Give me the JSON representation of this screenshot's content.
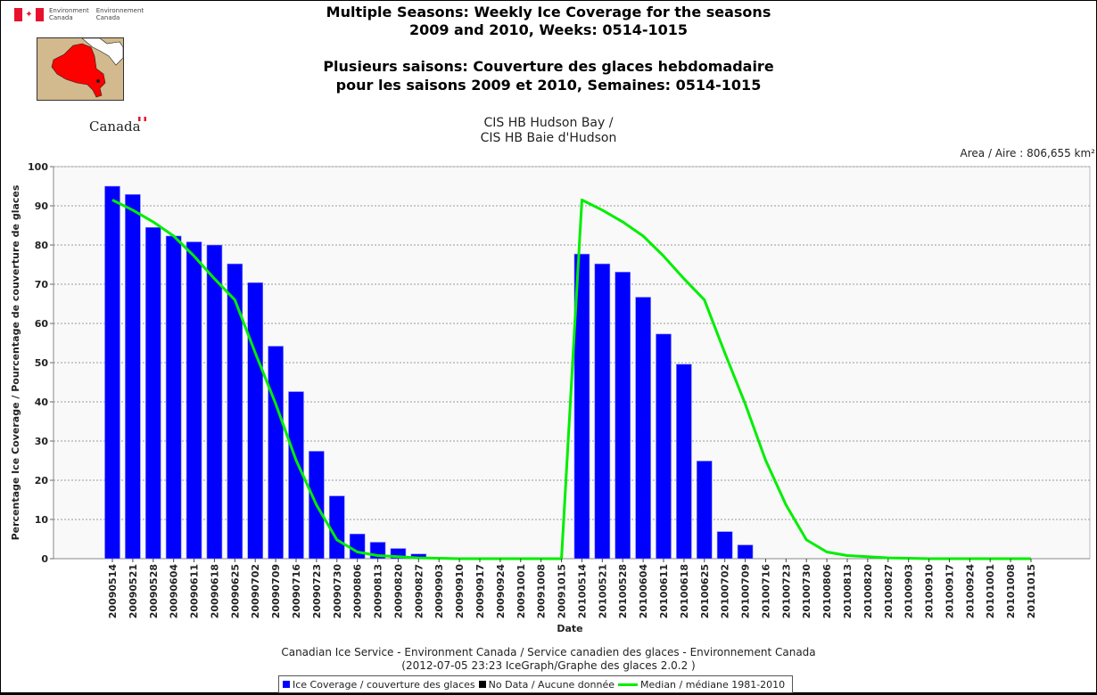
{
  "header": {
    "ec_en": "Environment",
    "ec_en2": "Canada",
    "ec_fr": "Environnement",
    "ec_fr2": "Canada",
    "wordmark": "Canada",
    "title_lines": [
      "Multiple Seasons: Weekly Ice Coverage for the seasons",
      "2009 and 2010, Weeks: 0514-1015",
      "Plusieurs saisons: Couverture des glaces hebdomadaire",
      "pour les saisons 2009 et 2010, Semaines: 0514-1015"
    ],
    "region_lines": [
      "CIS HB Hudson Bay /",
      "CIS HB Baie d'Hudson"
    ],
    "area": "Area / Aire : 806,655 km²"
  },
  "footer": {
    "line1": "Canadian Ice Service - Environment Canada / Service canadien des glaces - Environnement Canada",
    "line2": "(2012-07-05 23:23 IceGraph/Graphe des glaces 2.0.2 )"
  },
  "legend": {
    "ice": "Ice Coverage / couverture des glaces",
    "nodata": "No Data / Aucune donnée",
    "median": "Median / médiane 1981-2010"
  },
  "colors": {
    "bar": "#0000ff",
    "median": "#00ee00",
    "nodata": "#000000",
    "plot_bg": "#f9f9f9",
    "grid": "#999999"
  },
  "chart_data": {
    "type": "bar",
    "title": "Multiple Seasons: Weekly Ice Coverage for the seasons 2009 and 2010, Weeks: 0514-1015",
    "xlabel": "Date",
    "ylabel": "Percentage Ice Coverage / Pourcentage de couverture de glaces",
    "ylim": [
      0,
      100
    ],
    "yticks": [
      0,
      10,
      20,
      30,
      40,
      50,
      60,
      70,
      80,
      90,
      100
    ],
    "grid": true,
    "legend_position": "bottom",
    "categories": [
      "20090514",
      "20090521",
      "20090528",
      "20090604",
      "20090611",
      "20090618",
      "20090625",
      "20090702",
      "20090709",
      "20090716",
      "20090723",
      "20090730",
      "20090806",
      "20090813",
      "20090820",
      "20090827",
      "20090903",
      "20090910",
      "20090917",
      "20090924",
      "20091001",
      "20091008",
      "20091015",
      "20100514",
      "20100521",
      "20100528",
      "20100604",
      "20100611",
      "20100618",
      "20100625",
      "20100702",
      "20100709",
      "20100716",
      "20100723",
      "20100730",
      "20100806",
      "20100813",
      "20100820",
      "20100827",
      "20100903",
      "20100910",
      "20100917",
      "20100924",
      "20101001",
      "20101008",
      "20101015"
    ],
    "series": [
      {
        "name": "Ice Coverage / couverture des glaces",
        "kind": "bar",
        "values": [
          95.0,
          92.9,
          84.5,
          82.3,
          80.8,
          80.0,
          75.2,
          70.4,
          54.2,
          42.6,
          27.4,
          16.0,
          6.3,
          4.2,
          2.6,
          1.2,
          0,
          0,
          0,
          0,
          0,
          0,
          0,
          77.7,
          75.2,
          73.1,
          66.7,
          57.3,
          49.6,
          24.9,
          6.9,
          3.5,
          0,
          0,
          0,
          0,
          0,
          0,
          0,
          0,
          0,
          0,
          0,
          0,
          0,
          0
        ]
      },
      {
        "name": "Median / médiane 1981-2010",
        "kind": "line",
        "values": [
          91.5,
          88.9,
          85.9,
          82.3,
          77.2,
          71.4,
          66.0,
          52.5,
          39.5,
          25.1,
          13.7,
          4.8,
          1.7,
          0.8,
          0.5,
          0.2,
          0.1,
          0,
          0,
          0,
          0,
          0,
          0,
          91.5,
          88.9,
          85.9,
          82.3,
          77.2,
          71.4,
          66.0,
          52.5,
          39.5,
          25.1,
          13.7,
          4.8,
          1.7,
          0.8,
          0.5,
          0.2,
          0.1,
          0,
          0,
          0,
          0,
          0,
          0
        ]
      }
    ]
  }
}
